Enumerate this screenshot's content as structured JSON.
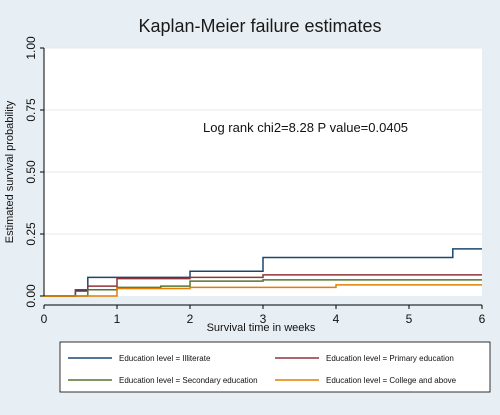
{
  "chart_data": {
    "type": "line",
    "title": "Kaplan-Meier failure estimates",
    "xlabel": "Survival  time in weeks",
    "ylabel": "Estimated survival probability",
    "xlim": [
      0,
      6
    ],
    "ylim": [
      0,
      1
    ],
    "xticks": [
      "0",
      "1",
      "2",
      "3",
      "4",
      "5",
      "6"
    ],
    "yticks": [
      "0.00",
      "0.25",
      "0.50",
      "0.75",
      "1.00"
    ],
    "annotation": "Log rank chi2=8.28    P value=0.0405",
    "legend_position": "bottom",
    "series": [
      {
        "name": "Education level = Illiterate",
        "color": "#1a476f",
        "steps": [
          [
            0,
            0
          ],
          [
            0.43,
            0.02
          ],
          [
            0.6,
            0.075
          ],
          [
            1,
            0.075
          ],
          [
            2,
            0.1
          ],
          [
            3,
            0.155
          ],
          [
            5.6,
            0.19
          ],
          [
            6,
            0.19
          ]
        ]
      },
      {
        "name": "Education level = Primary education",
        "color": "#90353b",
        "steps": [
          [
            0,
            0
          ],
          [
            0.43,
            0.025
          ],
          [
            0.6,
            0.04
          ],
          [
            1,
            0.07
          ],
          [
            2,
            0.075
          ],
          [
            3,
            0.085
          ],
          [
            6,
            0.085
          ]
        ]
      },
      {
        "name": "Education level = Secondary education",
        "color": "#55752f",
        "steps": [
          [
            0,
            0
          ],
          [
            0.6,
            0.025
          ],
          [
            1,
            0.035
          ],
          [
            1.6,
            0.04
          ],
          [
            2,
            0.06
          ],
          [
            3,
            0.065
          ],
          [
            6,
            0.065
          ]
        ]
      },
      {
        "name": "Education level = College and above",
        "color": "#e37e00",
        "steps": [
          [
            0,
            0
          ],
          [
            1,
            0.03
          ],
          [
            2,
            0.035
          ],
          [
            4,
            0.045
          ],
          [
            6,
            0.045
          ]
        ]
      }
    ]
  }
}
